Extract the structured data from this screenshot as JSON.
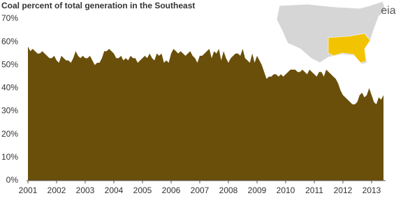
{
  "chart_data": {
    "type": "area",
    "title": "Coal percent of total generation in the Southeast",
    "categories": [
      "2001",
      null,
      null,
      null,
      null,
      null,
      null,
      null,
      null,
      null,
      null,
      null,
      "2002",
      null,
      null,
      null,
      null,
      null,
      null,
      null,
      null,
      null,
      null,
      null,
      "2003",
      null,
      null,
      null,
      null,
      null,
      null,
      null,
      null,
      null,
      null,
      null,
      "2004",
      null,
      null,
      null,
      null,
      null,
      null,
      null,
      null,
      null,
      null,
      null,
      "2005",
      null,
      null,
      null,
      null,
      null,
      null,
      null,
      null,
      null,
      null,
      null,
      "2006",
      null,
      null,
      null,
      null,
      null,
      null,
      null,
      null,
      null,
      null,
      null,
      "2007",
      null,
      null,
      null,
      null,
      null,
      null,
      null,
      null,
      null,
      null,
      null,
      "2008",
      null,
      null,
      null,
      null,
      null,
      null,
      null,
      null,
      null,
      null,
      null,
      "2009",
      null,
      null,
      null,
      null,
      null,
      null,
      null,
      null,
      null,
      null,
      null,
      "2010",
      null,
      null,
      null,
      null,
      null,
      null,
      null,
      null,
      null,
      null,
      null,
      "2011",
      null,
      null,
      null,
      null,
      null,
      null,
      null,
      null,
      null,
      null,
      null,
      "2012",
      null,
      null,
      null,
      null,
      null,
      null,
      null,
      null,
      null,
      null,
      null,
      "2013",
      null,
      null,
      null,
      null,
      null
    ],
    "values": [
      58,
      56,
      57,
      56,
      55,
      55,
      56,
      55,
      54,
      53,
      53,
      54,
      52,
      51,
      54,
      53,
      52,
      52,
      51,
      53,
      56,
      54,
      53,
      54,
      53,
      53,
      54,
      52,
      50,
      51,
      51,
      53,
      56,
      56,
      57,
      56,
      55,
      53,
      53,
      54,
      52,
      53,
      52,
      54,
      53,
      53,
      51,
      52,
      53,
      54,
      53,
      55,
      53,
      52,
      55,
      54,
      55,
      51,
      52,
      51,
      55,
      57,
      56,
      55,
      56,
      55,
      54,
      55,
      56,
      54,
      53,
      51,
      54,
      54,
      55,
      56,
      57,
      53,
      56,
      55,
      57,
      52,
      56,
      53,
      51,
      53,
      54,
      55,
      55,
      54,
      57,
      53,
      52,
      51,
      55,
      51,
      54,
      52,
      50,
      47,
      44,
      45,
      45,
      46,
      46,
      45,
      46,
      45,
      46,
      47,
      48,
      48,
      48,
      47,
      47,
      48,
      47,
      46,
      48,
      47,
      46,
      45,
      47,
      47,
      45,
      48,
      47,
      46,
      45,
      44,
      42,
      39,
      37,
      36,
      35,
      34,
      33,
      33,
      34,
      37,
      38,
      36,
      37,
      40,
      37,
      34,
      33,
      36,
      35,
      37
    ],
    "color": "#6a4f0b",
    "ylim": [
      0,
      70
    ],
    "yticks": [
      {
        "value": 0,
        "label": "0%"
      },
      {
        "value": 10,
        "label": "10%"
      },
      {
        "value": 20,
        "label": "20%"
      },
      {
        "value": 30,
        "label": "30%"
      },
      {
        "value": 40,
        "label": "40%"
      },
      {
        "value": 50,
        "label": "50%"
      },
      {
        "value": 60,
        "label": "60%"
      },
      {
        "value": 70,
        "label": "70%"
      }
    ],
    "grid": false
  },
  "source_logo": "eia"
}
